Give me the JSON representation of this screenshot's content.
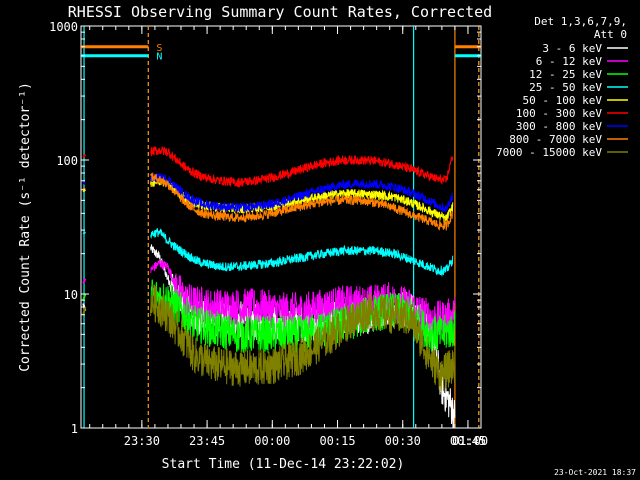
{
  "chart_data": {
    "type": "line",
    "title": "RHESSI Observing Summary Count Rates, Corrected",
    "xlabel": "Start Time (11-Dec-14 23:22:02)",
    "ylabel": "Corrected Count Rate (s⁻¹ detector⁻¹)",
    "yscale": "log",
    "ylim": [
      1,
      1000
    ],
    "xlim_minutes": [
      -6,
      86
    ],
    "yticks": [
      {
        "v": 1,
        "label": "1"
      },
      {
        "v": 10,
        "label": "10"
      },
      {
        "v": 100,
        "label": "100"
      },
      {
        "v": 1000,
        "label": "1000"
      }
    ],
    "xticks": [
      {
        "t": 8,
        "label": "23:30"
      },
      {
        "t": 23,
        "label": "23:45"
      },
      {
        "t": 38,
        "label": "00:00"
      },
      {
        "t": 53,
        "label": "00:15"
      },
      {
        "t": 68,
        "label": "00:30"
      },
      {
        "t": 83,
        "label": "00:45"
      },
      {
        "t": 98,
        "label": "01:00"
      }
    ],
    "legend_header": [
      "Det 1,3,6,7,9,",
      "Att 0"
    ],
    "legend_position": "right",
    "flags": [
      {
        "label": "S",
        "color": "#ff8000",
        "value": 700
      },
      {
        "label": "N",
        "color": "#00ffff",
        "value": 600
      }
    ],
    "flag_segments": [
      [
        -6,
        9.5
      ],
      [
        80,
        86
      ]
    ],
    "vertical_markers": [
      {
        "t": -5.3,
        "color": "#00ffff",
        "style": "solid"
      },
      {
        "t": 9.5,
        "color": "#00ffff",
        "style": "dashed"
      },
      {
        "t": 9.5,
        "color": "#ff8000",
        "style": "dashed"
      },
      {
        "t": 70.5,
        "color": "#00ffff",
        "style": "solid"
      },
      {
        "t": 80.0,
        "color": "#ff8000",
        "style": "solid"
      },
      {
        "t": 85.5,
        "color": "#00ffff",
        "style": "dashed"
      },
      {
        "t": 85.5,
        "color": "#ff8000",
        "style": "dashed"
      }
    ],
    "series": [
      {
        "name": "3 - 6 keV",
        "color": "#ffffff",
        "pre": [
          [
            -5.5,
            8.5
          ],
          [
            -5.0,
            7.5
          ]
        ],
        "points": [
          [
            10,
            22
          ],
          [
            12,
            19
          ],
          [
            14,
            13
          ],
          [
            16,
            10
          ],
          [
            18,
            8
          ],
          [
            20,
            7
          ],
          [
            24,
            6.5
          ],
          [
            30,
            6.5
          ],
          [
            35,
            6
          ],
          [
            40,
            6
          ],
          [
            45,
            6
          ],
          [
            50,
            6.2
          ],
          [
            55,
            6.5
          ],
          [
            60,
            7
          ],
          [
            65,
            8
          ],
          [
            70,
            7.5
          ],
          [
            73,
            6
          ],
          [
            75,
            4.5
          ],
          [
            77,
            2
          ],
          [
            79,
            1.5
          ],
          [
            80,
            1.2
          ]
        ]
      },
      {
        "name": "6 - 12 keV",
        "color": "#ff00ff",
        "pre": [
          [
            -5.5,
            12
          ],
          [
            -5.0,
            13
          ]
        ],
        "points": [
          [
            10,
            15
          ],
          [
            12,
            17
          ],
          [
            14,
            16
          ],
          [
            16,
            11
          ],
          [
            18,
            9
          ],
          [
            20,
            8.5
          ],
          [
            24,
            8
          ],
          [
            30,
            8
          ],
          [
            35,
            8
          ],
          [
            40,
            7.5
          ],
          [
            45,
            7.5
          ],
          [
            50,
            8
          ],
          [
            55,
            8.5
          ],
          [
            60,
            8.5
          ],
          [
            65,
            9
          ],
          [
            70,
            8
          ],
          [
            73,
            7
          ],
          [
            75,
            6.5
          ],
          [
            77,
            6.5
          ],
          [
            80,
            7
          ]
        ]
      },
      {
        "name": "12 - 25 keV",
        "color": "#00ff00",
        "pre": [
          [
            -5.5,
            9
          ],
          [
            -5.0,
            10
          ]
        ],
        "points": [
          [
            10,
            10
          ],
          [
            12,
            9.5
          ],
          [
            14,
            9
          ],
          [
            16,
            8
          ],
          [
            18,
            7
          ],
          [
            20,
            6
          ],
          [
            24,
            5.5
          ],
          [
            30,
            5
          ],
          [
            35,
            5
          ],
          [
            40,
            5
          ],
          [
            45,
            5
          ],
          [
            50,
            5.5
          ],
          [
            55,
            6
          ],
          [
            60,
            7
          ],
          [
            65,
            7.5
          ],
          [
            70,
            7
          ],
          [
            73,
            5.5
          ],
          [
            75,
            5
          ],
          [
            77,
            5
          ],
          [
            80,
            5.5
          ]
        ]
      },
      {
        "name": "25 - 50 keV",
        "color": "#00ffff",
        "pre": [
          [
            -5.5,
            28
          ],
          [
            -5.0,
            29
          ]
        ],
        "points": [
          [
            10,
            28
          ],
          [
            12,
            29
          ],
          [
            14,
            25
          ],
          [
            16,
            22
          ],
          [
            18,
            20
          ],
          [
            20,
            18
          ],
          [
            22,
            17
          ],
          [
            26,
            16
          ],
          [
            30,
            16
          ],
          [
            34,
            16.5
          ],
          [
            38,
            17
          ],
          [
            42,
            18
          ],
          [
            46,
            19
          ],
          [
            50,
            20
          ],
          [
            54,
            21
          ],
          [
            58,
            21
          ],
          [
            62,
            21
          ],
          [
            66,
            20
          ],
          [
            70,
            18
          ],
          [
            74,
            16
          ],
          [
            76,
            15
          ],
          [
            78,
            15
          ],
          [
            79.5,
            18
          ]
        ]
      },
      {
        "name": "50 - 100 keV",
        "color": "#ffff00",
        "pre": [
          [
            -5.5,
            58
          ],
          [
            -5.0,
            60
          ]
        ],
        "points": [
          [
            10,
            68
          ],
          [
            12,
            70
          ],
          [
            14,
            67
          ],
          [
            16,
            58
          ],
          [
            18,
            52
          ],
          [
            20,
            48
          ],
          [
            22,
            46
          ],
          [
            26,
            44
          ],
          [
            30,
            43
          ],
          [
            34,
            44
          ],
          [
            38,
            45
          ],
          [
            42,
            48
          ],
          [
            46,
            51
          ],
          [
            50,
            54
          ],
          [
            54,
            56
          ],
          [
            58,
            56
          ],
          [
            62,
            55
          ],
          [
            66,
            53
          ],
          [
            70,
            48
          ],
          [
            74,
            42
          ],
          [
            76,
            39
          ],
          [
            78,
            36
          ],
          [
            79.5,
            45
          ]
        ]
      },
      {
        "name": "100 - 300 keV",
        "color": "#ff0000",
        "pre": [
          [
            -5.5,
            105
          ],
          [
            -5.0,
            110
          ]
        ],
        "points": [
          [
            10,
            115
          ],
          [
            12,
            118
          ],
          [
            14,
            115
          ],
          [
            16,
            100
          ],
          [
            18,
            88
          ],
          [
            20,
            80
          ],
          [
            22,
            75
          ],
          [
            26,
            70
          ],
          [
            30,
            68
          ],
          [
            34,
            70
          ],
          [
            38,
            74
          ],
          [
            42,
            80
          ],
          [
            46,
            88
          ],
          [
            50,
            95
          ],
          [
            54,
            100
          ],
          [
            58,
            100
          ],
          [
            62,
            98
          ],
          [
            66,
            93
          ],
          [
            70,
            85
          ],
          [
            74,
            76
          ],
          [
            76,
            72
          ],
          [
            78,
            70
          ],
          [
            79.5,
            110
          ]
        ]
      },
      {
        "name": "300 - 800 keV",
        "color": "#0000ff",
        "pre": [
          [
            -5.5,
            68
          ],
          [
            -5.0,
            66
          ]
        ],
        "points": [
          [
            10,
            72
          ],
          [
            12,
            74
          ],
          [
            14,
            72
          ],
          [
            16,
            62
          ],
          [
            18,
            55
          ],
          [
            20,
            50
          ],
          [
            22,
            47
          ],
          [
            26,
            45
          ],
          [
            30,
            44
          ],
          [
            34,
            45
          ],
          [
            38,
            47
          ],
          [
            42,
            51
          ],
          [
            46,
            56
          ],
          [
            50,
            61
          ],
          [
            54,
            65
          ],
          [
            58,
            67
          ],
          [
            62,
            66
          ],
          [
            66,
            63
          ],
          [
            70,
            57
          ],
          [
            74,
            50
          ],
          [
            76,
            46
          ],
          [
            78,
            43
          ],
          [
            79.5,
            55
          ]
        ]
      },
      {
        "name": "800 - 7000 keV",
        "color": "#ff8000",
        "pre": [
          [
            -5.5,
            62
          ],
          [
            -5.0,
            60
          ]
        ],
        "points": [
          [
            10,
            75
          ],
          [
            12,
            72
          ],
          [
            14,
            66
          ],
          [
            16,
            56
          ],
          [
            18,
            48
          ],
          [
            20,
            43
          ],
          [
            22,
            40
          ],
          [
            26,
            38
          ],
          [
            30,
            37
          ],
          [
            34,
            38
          ],
          [
            38,
            40
          ],
          [
            42,
            43
          ],
          [
            46,
            46
          ],
          [
            50,
            49
          ],
          [
            54,
            50
          ],
          [
            58,
            50
          ],
          [
            62,
            48
          ],
          [
            66,
            44
          ],
          [
            70,
            39
          ],
          [
            74,
            35
          ],
          [
            76,
            33
          ],
          [
            78,
            32
          ],
          [
            79.5,
            40
          ]
        ]
      },
      {
        "name": "7000 - 15000 keV",
        "color": "#808000",
        "pre": [
          [
            -5.5,
            7
          ],
          [
            -5.0,
            8
          ]
        ],
        "points": [
          [
            10,
            9
          ],
          [
            12,
            8
          ],
          [
            14,
            7
          ],
          [
            16,
            5.5
          ],
          [
            18,
            4.5
          ],
          [
            20,
            3.5
          ],
          [
            24,
            3
          ],
          [
            30,
            2.8
          ],
          [
            35,
            2.8
          ],
          [
            40,
            3
          ],
          [
            45,
            3.5
          ],
          [
            50,
            4.5
          ],
          [
            55,
            6
          ],
          [
            60,
            7.5
          ],
          [
            65,
            7
          ],
          [
            70,
            6.5
          ],
          [
            73,
            4
          ],
          [
            75,
            3
          ],
          [
            77,
            2.5
          ],
          [
            80,
            3
          ]
        ]
      }
    ]
  },
  "footer": {
    "timestamp": "23-Oct-2021 18:37"
  }
}
